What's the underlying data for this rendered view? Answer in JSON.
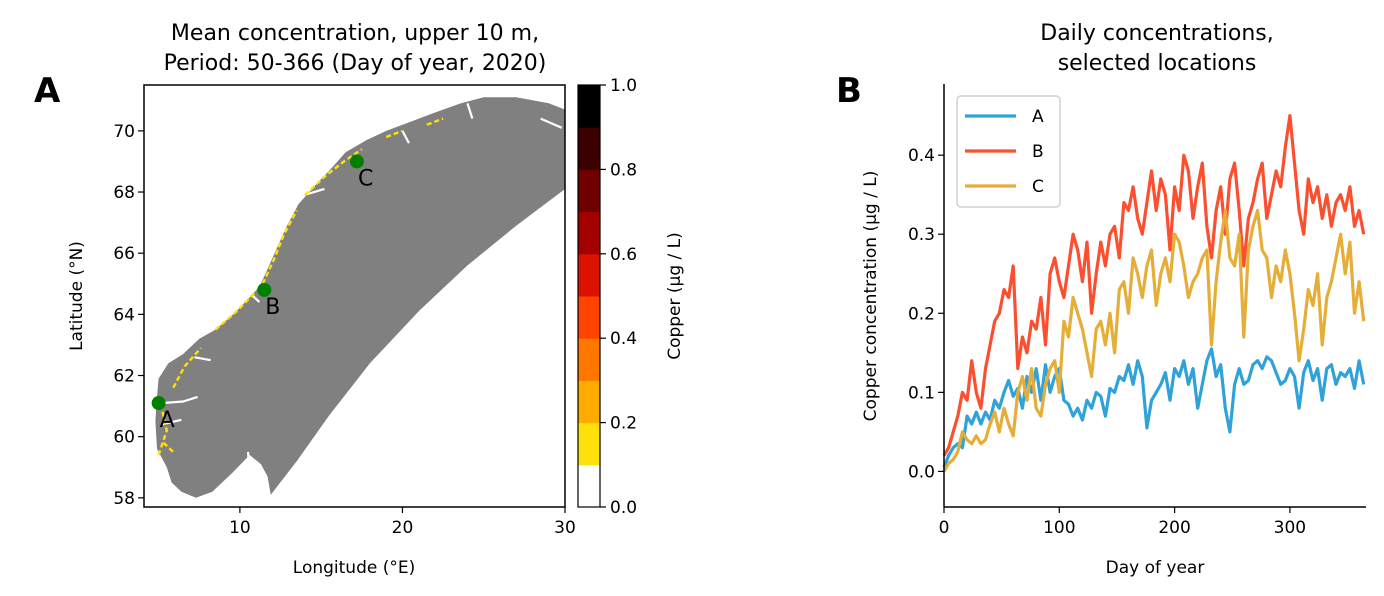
{
  "chart_data": [
    {
      "type": "heatmap",
      "panel_label": "A",
      "title": [
        "Mean concentration, upper 10 m,",
        "Period: 50-366 (Day of year, 2020)"
      ],
      "xlabel": "Longitude (°E)",
      "ylabel": "Latitude (°N)",
      "xlim": [
        4.1,
        30
      ],
      "ylim": [
        57.7,
        71.5
      ],
      "xticks": [
        10,
        20,
        30
      ],
      "yticks": [
        58,
        60,
        62,
        64,
        66,
        68,
        70
      ],
      "land_color": "#808080",
      "marker_color": "#008000",
      "locations": [
        {
          "name": "A",
          "lon": 5.0,
          "lat": 61.1
        },
        {
          "name": "B",
          "lon": 11.5,
          "lat": 64.8
        },
        {
          "name": "C",
          "lon": 17.2,
          "lat": 69.0
        }
      ],
      "colorbar": {
        "label": "Copper (µg / L)",
        "range": [
          0.0,
          1.0
        ],
        "ticks": [
          0.0,
          0.2,
          0.4,
          0.6,
          0.8,
          1.0
        ],
        "bounds": [
          0.0,
          0.1,
          0.2,
          0.3,
          0.4,
          0.5,
          0.6,
          0.7,
          0.8,
          0.9,
          1.0
        ],
        "colors": [
          "#ffffff",
          "#ffe00a",
          "#ffab00",
          "#ff7700",
          "#ff4400",
          "#dd1100",
          "#a30000",
          "#6e0000",
          "#3d0000",
          "#000000"
        ]
      }
    },
    {
      "type": "line",
      "panel_label": "B",
      "title": [
        "Daily concentrations,",
        "selected locations"
      ],
      "xlabel": "Day of year",
      "ylabel": "Copper concentration (µg / L)",
      "xlim": [
        0,
        366
      ],
      "ylim": [
        -0.045,
        0.49
      ],
      "xticks": [
        0,
        100,
        200,
        300
      ],
      "yticks": [
        0.0,
        0.1,
        0.2,
        0.3,
        0.4
      ],
      "legend_position": "top-left",
      "x": [
        0,
        4,
        8,
        12,
        16,
        20,
        24,
        28,
        32,
        36,
        40,
        44,
        48,
        52,
        56,
        60,
        64,
        68,
        72,
        76,
        80,
        84,
        88,
        92,
        96,
        100,
        104,
        108,
        112,
        116,
        120,
        124,
        128,
        132,
        136,
        140,
        144,
        148,
        152,
        156,
        160,
        164,
        168,
        172,
        176,
        180,
        184,
        188,
        192,
        196,
        200,
        204,
        208,
        212,
        216,
        220,
        224,
        228,
        232,
        236,
        240,
        244,
        248,
        252,
        256,
        260,
        264,
        268,
        272,
        276,
        280,
        284,
        288,
        292,
        296,
        300,
        304,
        308,
        312,
        316,
        320,
        324,
        328,
        332,
        336,
        340,
        344,
        348,
        352,
        356,
        360,
        364
      ],
      "series": [
        {
          "name": "A",
          "color": "#30a2da",
          "values": [
            0.005,
            0.02,
            0.03,
            0.035,
            0.03,
            0.07,
            0.06,
            0.075,
            0.06,
            0.075,
            0.065,
            0.09,
            0.08,
            0.1,
            0.115,
            0.095,
            0.105,
            0.08,
            0.12,
            0.1,
            0.13,
            0.09,
            0.135,
            0.1,
            0.12,
            0.13,
            0.09,
            0.085,
            0.07,
            0.08,
            0.065,
            0.09,
            0.08,
            0.1,
            0.095,
            0.07,
            0.105,
            0.1,
            0.12,
            0.115,
            0.135,
            0.11,
            0.14,
            0.12,
            0.055,
            0.09,
            0.1,
            0.11,
            0.125,
            0.09,
            0.13,
            0.12,
            0.14,
            0.11,
            0.13,
            0.08,
            0.11,
            0.14,
            0.155,
            0.12,
            0.135,
            0.08,
            0.05,
            0.11,
            0.13,
            0.11,
            0.115,
            0.135,
            0.14,
            0.13,
            0.145,
            0.14,
            0.125,
            0.11,
            0.115,
            0.13,
            0.12,
            0.08,
            0.125,
            0.14,
            0.115,
            0.13,
            0.09,
            0.13,
            0.135,
            0.11,
            0.125,
            0.12,
            0.13,
            0.105,
            0.14,
            0.11
          ]
        },
        {
          "name": "B",
          "color": "#fc4f30",
          "values": [
            0.02,
            0.03,
            0.05,
            0.07,
            0.1,
            0.09,
            0.14,
            0.1,
            0.08,
            0.13,
            0.16,
            0.19,
            0.2,
            0.23,
            0.22,
            0.26,
            0.13,
            0.17,
            0.15,
            0.19,
            0.18,
            0.22,
            0.16,
            0.25,
            0.27,
            0.24,
            0.22,
            0.26,
            0.3,
            0.28,
            0.24,
            0.29,
            0.2,
            0.25,
            0.29,
            0.26,
            0.3,
            0.31,
            0.27,
            0.34,
            0.33,
            0.36,
            0.32,
            0.3,
            0.34,
            0.38,
            0.33,
            0.37,
            0.35,
            0.28,
            0.36,
            0.33,
            0.4,
            0.38,
            0.32,
            0.36,
            0.39,
            0.31,
            0.27,
            0.33,
            0.36,
            0.3,
            0.37,
            0.39,
            0.33,
            0.26,
            0.32,
            0.34,
            0.37,
            0.39,
            0.32,
            0.35,
            0.38,
            0.36,
            0.41,
            0.45,
            0.39,
            0.33,
            0.3,
            0.37,
            0.34,
            0.36,
            0.32,
            0.35,
            0.31,
            0.34,
            0.35,
            0.33,
            0.36,
            0.31,
            0.33,
            0.3
          ]
        },
        {
          "name": "C",
          "color": "#e5ae38",
          "values": [
            0.0,
            0.01,
            0.015,
            0.025,
            0.05,
            0.04,
            0.035,
            0.045,
            0.035,
            0.04,
            0.06,
            0.075,
            0.05,
            0.08,
            0.06,
            0.045,
            0.1,
            0.12,
            0.09,
            0.13,
            0.08,
            0.07,
            0.11,
            0.13,
            0.14,
            0.1,
            0.19,
            0.17,
            0.22,
            0.2,
            0.18,
            0.15,
            0.12,
            0.18,
            0.19,
            0.16,
            0.2,
            0.15,
            0.23,
            0.24,
            0.2,
            0.27,
            0.25,
            0.22,
            0.26,
            0.28,
            0.21,
            0.25,
            0.27,
            0.24,
            0.3,
            0.29,
            0.26,
            0.22,
            0.24,
            0.25,
            0.27,
            0.28,
            0.16,
            0.24,
            0.29,
            0.33,
            0.27,
            0.26,
            0.3,
            0.17,
            0.28,
            0.31,
            0.33,
            0.28,
            0.27,
            0.22,
            0.26,
            0.24,
            0.28,
            0.25,
            0.2,
            0.14,
            0.18,
            0.23,
            0.21,
            0.25,
            0.16,
            0.22,
            0.24,
            0.27,
            0.3,
            0.25,
            0.29,
            0.2,
            0.24,
            0.19
          ]
        }
      ]
    }
  ]
}
